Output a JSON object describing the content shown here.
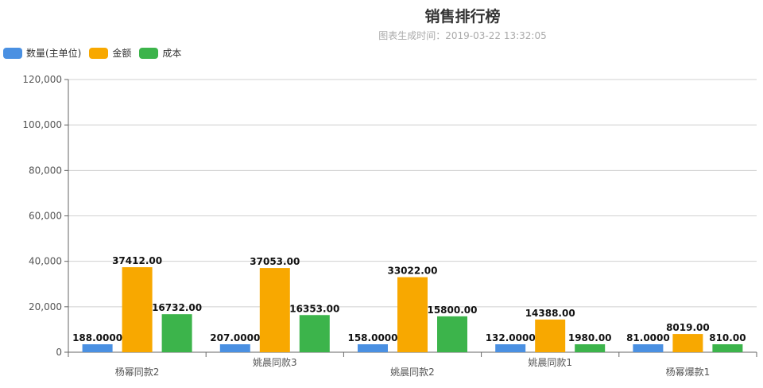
{
  "chart_data": {
    "type": "bar",
    "title": "销售排行榜",
    "subtitle": "图表生成时间：2019-03-22 13:32:05",
    "categories": [
      "杨幂同款2",
      "姚晨同款3",
      "姚晨同款2",
      "姚晨同款1",
      "杨幂爆款1"
    ],
    "series": [
      {
        "name": "数量(主单位)",
        "color": "#4a90e2",
        "values": [
          188,
          207,
          158,
          132,
          81
        ],
        "labels": [
          "188.0000",
          "207.0000",
          "158.0000",
          "132.0000",
          "81.0000"
        ]
      },
      {
        "name": "金额",
        "color": "#f8a800",
        "values": [
          37412,
          37053,
          33022,
          14388,
          8019
        ],
        "labels": [
          "37412.00",
          "37053.00",
          "33022.00",
          "14388.00",
          "8019.00"
        ]
      },
      {
        "name": "成本",
        "color": "#3cb44b",
        "values": [
          16732,
          16353,
          15800,
          1980,
          810
        ],
        "labels": [
          "16732.00",
          "16353.00",
          "15800.00",
          "1980.00",
          "810.00"
        ]
      }
    ],
    "ylim": [
      0,
      120000
    ],
    "yticks": [
      "0",
      "20,000",
      "40,000",
      "60,000",
      "80,000",
      "100,000",
      "120,000"
    ],
    "grid": true,
    "legend": "top-left"
  }
}
